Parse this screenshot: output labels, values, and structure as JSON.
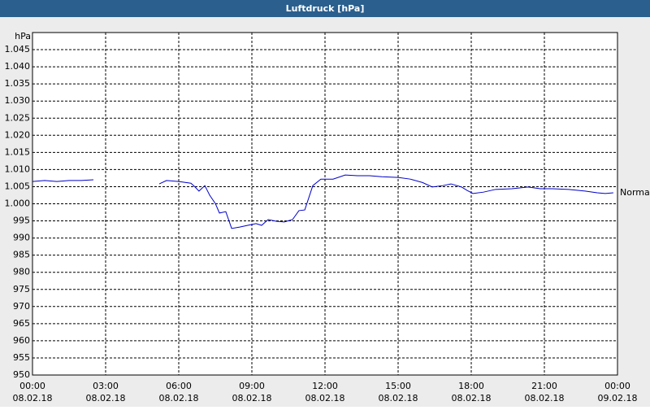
{
  "chart_data": {
    "type": "line",
    "title": "Luftdruck [hPa]",
    "y_label": "hPa",
    "x": [
      0,
      0.5,
      1,
      1.5,
      2,
      2.5,
      4,
      5.2,
      5.5,
      6,
      6.5,
      6.67,
      6.83,
      7.07,
      7.27,
      7.5,
      7.67,
      7.93,
      8.17,
      8.5,
      8.83,
      9.17,
      9.4,
      9.67,
      10,
      10.33,
      10.67,
      10.93,
      11.17,
      11.5,
      11.83,
      12.33,
      12.83,
      13.33,
      13.83,
      14.33,
      15,
      15.5,
      16,
      16.4,
      16.83,
      17.17,
      17.6,
      17.83,
      18.07,
      18.5,
      19,
      19.67,
      20.33,
      20.83,
      21.33,
      22,
      22.67,
      23.17,
      23.5,
      23.83
    ],
    "series": [
      {
        "name": "Normal",
        "color": "#0000c8",
        "values": [
          1006.5,
          1006.8,
          1006.5,
          1006.8,
          1006.8,
          1007.0,
          null,
          1005.8,
          1006.8,
          1006.5,
          1006.0,
          1004.9,
          1003.7,
          1005.3,
          1002.5,
          1000.1,
          997.3,
          997.7,
          992.8,
          993.2,
          993.7,
          994.2,
          993.7,
          995.4,
          994.9,
          994.7,
          995.4,
          998.0,
          998.2,
          1005.3,
          1007.2,
          1007.2,
          1008.4,
          1008.2,
          1008.2,
          1007.9,
          1007.7,
          1007.2,
          1006.2,
          1004.9,
          1005.3,
          1005.8,
          1004.9,
          1003.9,
          1003.0,
          1003.4,
          1004.2,
          1004.4,
          1004.9,
          1004.4,
          1004.4,
          1004.2,
          1003.7,
          1003.2,
          1003.0,
          1003.2
        ]
      }
    ],
    "xlim": [
      0,
      24
    ],
    "xticks": [
      {
        "value": 0,
        "label": "00:00"
      },
      {
        "value": 3,
        "label": "03:00"
      },
      {
        "value": 6,
        "label": "06:00"
      },
      {
        "value": 9,
        "label": "09:00"
      },
      {
        "value": 12,
        "label": "12:00"
      },
      {
        "value": 15,
        "label": "15:00"
      },
      {
        "value": 18,
        "label": "18:00"
      },
      {
        "value": 21,
        "label": "21:00"
      },
      {
        "value": 24,
        "label": "00:00"
      }
    ],
    "xtick_dates": [
      "08.02.18",
      "08.02.18",
      "08.02.18",
      "08.02.18",
      "08.02.18",
      "08.02.18",
      "08.02.18",
      "08.02.18",
      "09.02.18"
    ],
    "ylim": [
      950,
      1050
    ],
    "yticks": [
      950,
      955,
      960,
      965,
      970,
      975,
      980,
      985,
      990,
      995,
      {
        "value": 1000,
        "label": "1.000"
      },
      {
        "value": 1005,
        "label": "1.005"
      },
      {
        "value": 1010,
        "label": "1.010"
      },
      {
        "value": 1015,
        "label": "1.015"
      },
      {
        "value": 1020,
        "label": "1.020"
      },
      {
        "value": 1025,
        "label": "1.025"
      },
      {
        "value": 1030,
        "label": "1.030"
      },
      {
        "value": 1035,
        "label": "1.035"
      },
      {
        "value": 1040,
        "label": "1.040"
      },
      {
        "value": 1045,
        "label": "1.045"
      }
    ],
    "grid": true
  }
}
